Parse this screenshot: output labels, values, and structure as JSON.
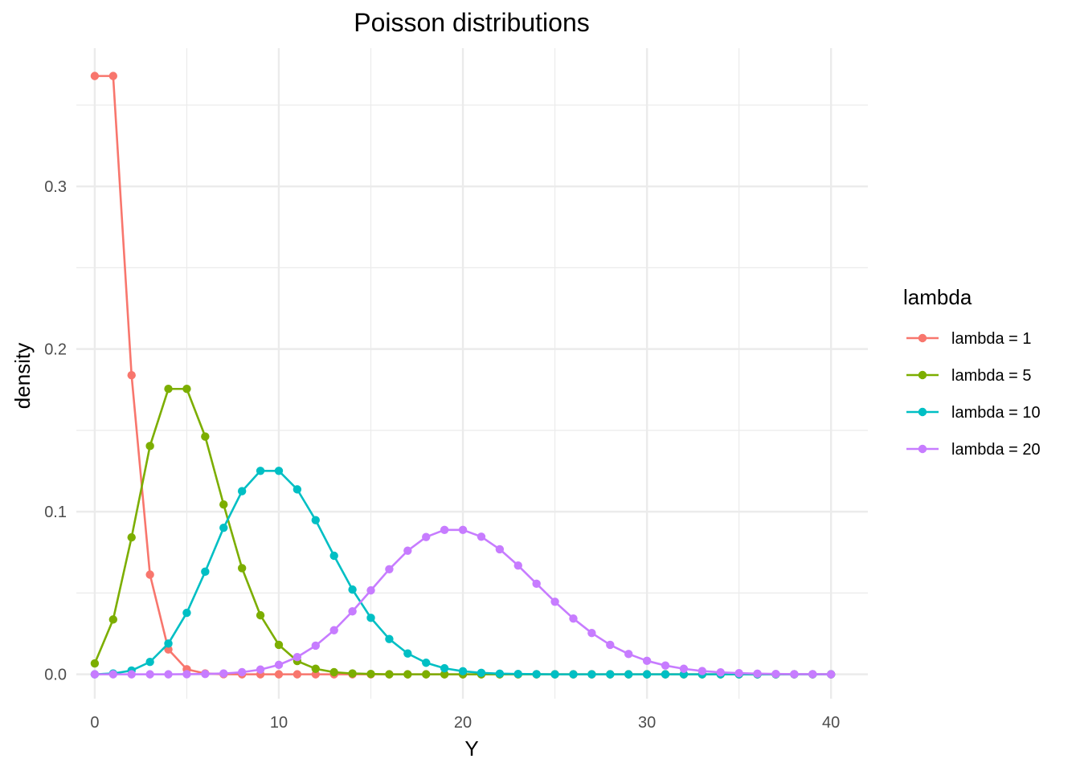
{
  "chart_data": {
    "type": "line",
    "title": "Poisson distributions",
    "xlabel": "Y",
    "ylabel": "density",
    "xlim": [
      -1,
      42
    ],
    "ylim": [
      -0.015,
      0.385
    ],
    "x_ticks": [
      0,
      10,
      20,
      30,
      40
    ],
    "y_ticks": [
      0.0,
      0.1,
      0.2,
      0.3
    ],
    "x_tick_labels": [
      "0",
      "10",
      "20",
      "30",
      "40"
    ],
    "y_tick_labels": [
      "0.0",
      "0.1",
      "0.2",
      "0.3"
    ],
    "grid": true,
    "legend": {
      "title": "lambda",
      "position": "right"
    },
    "x": [
      0,
      1,
      2,
      3,
      4,
      5,
      6,
      7,
      8,
      9,
      10,
      11,
      12,
      13,
      14,
      15,
      16,
      17,
      18,
      19,
      20,
      21,
      22,
      23,
      24,
      25,
      26,
      27,
      28,
      29,
      30,
      31,
      32,
      33,
      34,
      35,
      36,
      37,
      38,
      39,
      40
    ],
    "series": [
      {
        "name": "lambda = 1",
        "color": "#F8766D",
        "values": [
          0.3679,
          0.3679,
          0.1839,
          0.0613,
          0.0153,
          0.0031,
          0.0005,
          0.0001,
          0,
          0,
          0,
          0,
          0,
          0,
          0,
          0,
          0,
          0,
          0,
          0,
          0,
          0,
          0,
          0,
          0,
          0,
          0,
          0,
          0,
          0,
          0,
          0,
          0,
          0,
          0,
          0,
          0,
          0,
          0,
          0,
          0
        ]
      },
      {
        "name": "lambda = 5",
        "color": "#7CAE00",
        "values": [
          0.0067,
          0.0337,
          0.0842,
          0.1404,
          0.1755,
          0.1755,
          0.1462,
          0.1044,
          0.0653,
          0.0363,
          0.0181,
          0.0082,
          0.0034,
          0.0013,
          0.0005,
          0.0002,
          0,
          0,
          0,
          0,
          0,
          0,
          0,
          0,
          0,
          0,
          0,
          0,
          0,
          0,
          0,
          0,
          0,
          0,
          0,
          0,
          0,
          0,
          0,
          0,
          0
        ]
      },
      {
        "name": "lambda = 10",
        "color": "#00BFC4",
        "values": [
          0,
          0.0005,
          0.0023,
          0.0076,
          0.0189,
          0.0378,
          0.0631,
          0.0901,
          0.1126,
          0.1251,
          0.1251,
          0.1137,
          0.0948,
          0.0729,
          0.0521,
          0.0347,
          0.0217,
          0.0128,
          0.0071,
          0.0037,
          0.0019,
          0.0009,
          0.0004,
          0.0002,
          0.0001,
          0,
          0,
          0,
          0,
          0,
          0,
          0,
          0,
          0,
          0,
          0,
          0,
          0,
          0,
          0,
          0
        ]
      },
      {
        "name": "lambda = 20",
        "color": "#C77CFF",
        "values": [
          0,
          0,
          0,
          0,
          0,
          0.0001,
          0.0002,
          0.0005,
          0.0013,
          0.0029,
          0.0058,
          0.0106,
          0.0176,
          0.0271,
          0.0387,
          0.0516,
          0.0646,
          0.076,
          0.0844,
          0.0888,
          0.0888,
          0.0846,
          0.0769,
          0.0669,
          0.0557,
          0.0446,
          0.0343,
          0.0254,
          0.0181,
          0.0125,
          0.0083,
          0.0054,
          0.0034,
          0.002,
          0.0012,
          0.0007,
          0.0004,
          0.0002,
          0.0001,
          0.0001,
          0
        ]
      }
    ]
  }
}
